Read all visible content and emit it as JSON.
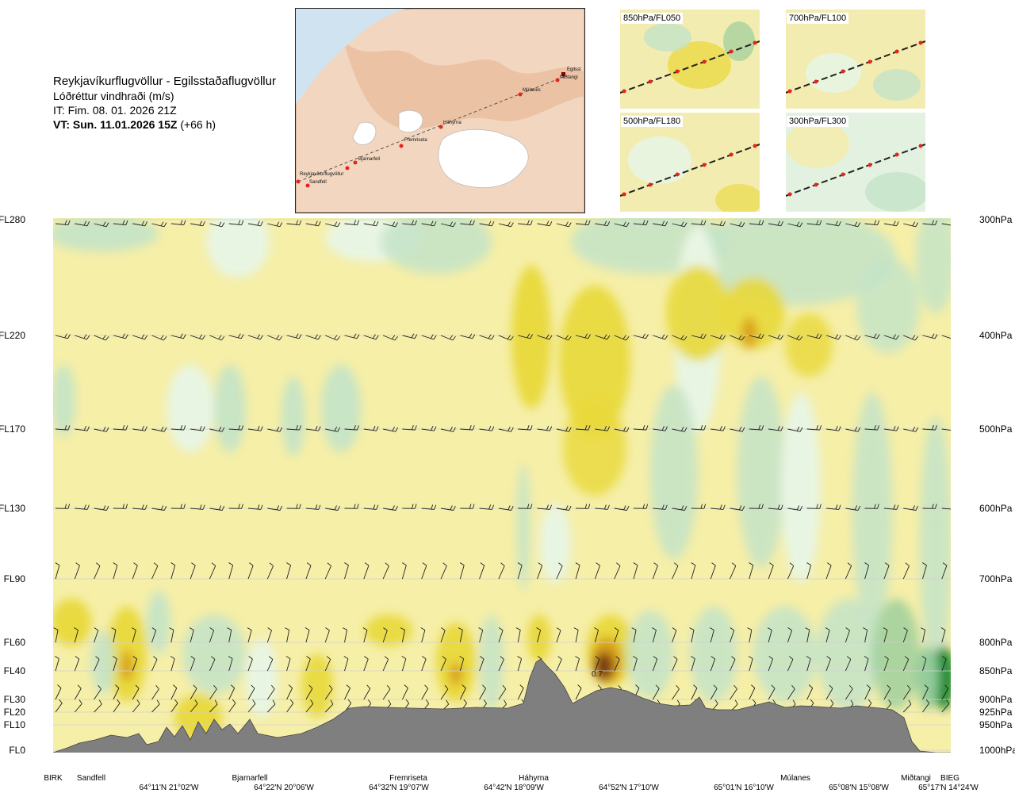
{
  "header": {
    "route": "Reykjavíkurflugvöllur - Egilsstaðaflugvöllur",
    "parameter": "Lóðréttur vindhraði (m/s)",
    "issue_time": "IT: Fim. 08. 01. 2026 21Z",
    "valid_time_bold": "VT: Sun. 11.01.2026 15Z",
    "valid_time_suffix": "(+66 h)"
  },
  "map": {
    "waypoints": [
      "Reykjavíkurflugvöllur",
      "Sandfell",
      "Bjarnarfell",
      "Fremriseta",
      "Háhyrna",
      "Múlanes",
      "Egilsst",
      "Miðtangi"
    ]
  },
  "panels": [
    {
      "label": "850hPa/FL050"
    },
    {
      "label": "700hPa/FL100"
    },
    {
      "label": "500hPa/FL180"
    },
    {
      "label": "300hPa/FL300"
    }
  ],
  "colors": {
    "positive_light": "#f6efa8",
    "positive_mid": "#e8d838",
    "positive_high": "#d9a21c",
    "positive_max": "#7a3b14",
    "negative_light": "#e8f5e3",
    "negative_mid": "#c3e3c8",
    "negative_high": "#8dc99a",
    "negative_max": "#1a8a2e",
    "terrain": "#7f7f7f",
    "route_point": "#e8231c"
  },
  "chart_data": {
    "type": "heatmap",
    "title": "Lóðréttur vindhraði (m/s)",
    "levels_left": [
      "FL280",
      "FL220",
      "FL170",
      "FL130",
      "FL90",
      "FL60",
      "FL40",
      "FL30",
      "FL20",
      "FL10",
      "FL0"
    ],
    "levels_right": [
      "300hPa",
      "400hPa",
      "500hPa",
      "600hPa",
      "700hPa",
      "800hPa",
      "850hPa",
      "900hPa",
      "925hPa",
      "950hPa",
      "1000hPa"
    ],
    "waypoints": [
      "BIRK",
      "Sandfell",
      "Bjarnarfell",
      "Fremriseta",
      "Háhyrna",
      "Múlanes",
      "Miðtangi",
      "BIEG"
    ],
    "coordinates": [
      "64°11'N 21°02'W",
      "64°22'N 20°06'W",
      "64°32'N 19°07'W",
      "64°42'N 18°09'W",
      "64°52'N 17°10'W",
      "65°01'N 16°10'W",
      "65°08'N 15°08'W",
      "65°17'N 14°24'W"
    ],
    "annotations": [
      "0.7"
    ],
    "grid": true
  }
}
